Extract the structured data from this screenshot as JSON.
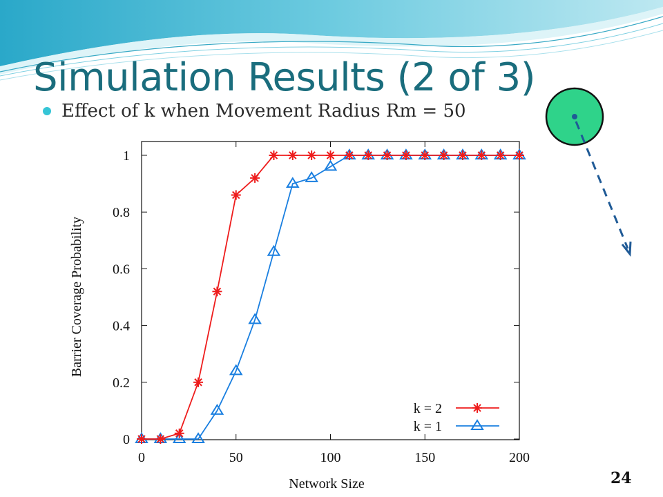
{
  "slide": {
    "title": "Simulation Results (2 of 3)",
    "bullet": "Effect of k when Movement Radius Rm = 50",
    "page_number": "24"
  },
  "colors": {
    "title": "#1a6d7d",
    "bullet": "#36c5d6",
    "series_k2": "#ee1c1c",
    "series_k1": "#1a7fe0",
    "sensor_fill": "#2fd38a",
    "movement_arrow": "#1f5a96"
  },
  "icons": {
    "sensor": "sensor-node-icon",
    "movement": "dashed-arrow-icon"
  },
  "chart_data": {
    "type": "line",
    "xlabel": "Network Size",
    "ylabel": "Barrier Coverage Probability",
    "xlim": [
      0,
      200
    ],
    "ylim": [
      0,
      1
    ],
    "xticks": [
      "0",
      "50",
      "100",
      "150",
      "200"
    ],
    "yticks": [
      "0",
      "0.2",
      "0.4",
      "0.6",
      "0.8",
      "1"
    ],
    "grid": false,
    "legend": "bottom-right",
    "x": [
      0,
      10,
      20,
      30,
      40,
      50,
      60,
      70,
      80,
      90,
      100,
      110,
      120,
      130,
      140,
      150,
      160,
      170,
      180,
      190,
      200
    ],
    "series": [
      {
        "name": "k = 2",
        "marker": "asterisk",
        "values": [
          0,
          0,
          0.02,
          0.2,
          0.52,
          0.86,
          0.92,
          1,
          1,
          1,
          1,
          1,
          1,
          1,
          1,
          1,
          1,
          1,
          1,
          1,
          1
        ]
      },
      {
        "name": "k = 1",
        "marker": "triangle",
        "values": [
          0,
          0,
          0,
          0,
          0.1,
          0.24,
          0.42,
          0.66,
          0.9,
          0.92,
          0.96,
          1,
          1,
          1,
          1,
          1,
          1,
          1,
          1,
          1,
          1
        ]
      }
    ]
  }
}
